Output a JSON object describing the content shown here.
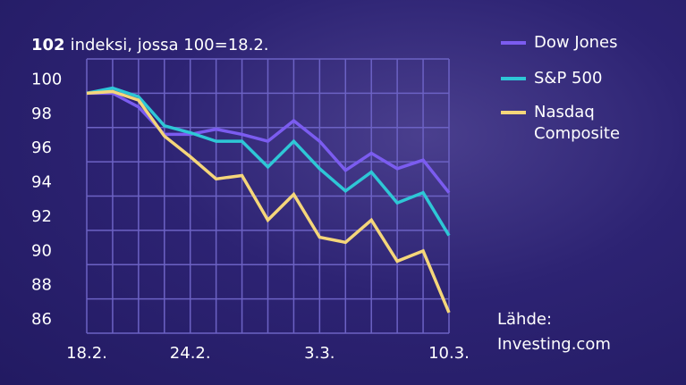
{
  "chart_data": {
    "type": "line",
    "y_label": "indeksi, jossa 100=18.2.",
    "categories": [
      "18.2.",
      null,
      null,
      null,
      "24.2.",
      null,
      null,
      null,
      null,
      "3.3.",
      null,
      null,
      null,
      null,
      "10.3."
    ],
    "series": [
      {
        "name": "Dow Jones",
        "color": "#7b5cf0",
        "values": [
          100,
          100,
          99.2,
          97.6,
          97.6,
          97.9,
          97.6,
          97.2,
          98.4,
          97.2,
          95.5,
          96.5,
          95.6,
          96.1,
          94.2
        ]
      },
      {
        "name": "S&P 500",
        "color": "#2ec7d6",
        "values": [
          100,
          100.3,
          99.8,
          98.1,
          97.7,
          97.2,
          97.2,
          95.7,
          97.2,
          95.6,
          94.3,
          95.4,
          93.6,
          94.2,
          91.7
        ]
      },
      {
        "name": "Nasdaq Composite",
        "color": "#f5d67a",
        "values": [
          100,
          100.1,
          99.6,
          97.5,
          96.3,
          95.0,
          95.2,
          92.6,
          94.1,
          91.6,
          91.3,
          92.6,
          90.2,
          90.8,
          87.2
        ]
      }
    ],
    "ylim": [
      86,
      102
    ],
    "yticks": [
      86,
      88,
      90,
      92,
      94,
      96,
      98,
      100,
      102
    ],
    "grid": true,
    "source": "Lähde: Investing.com"
  }
}
